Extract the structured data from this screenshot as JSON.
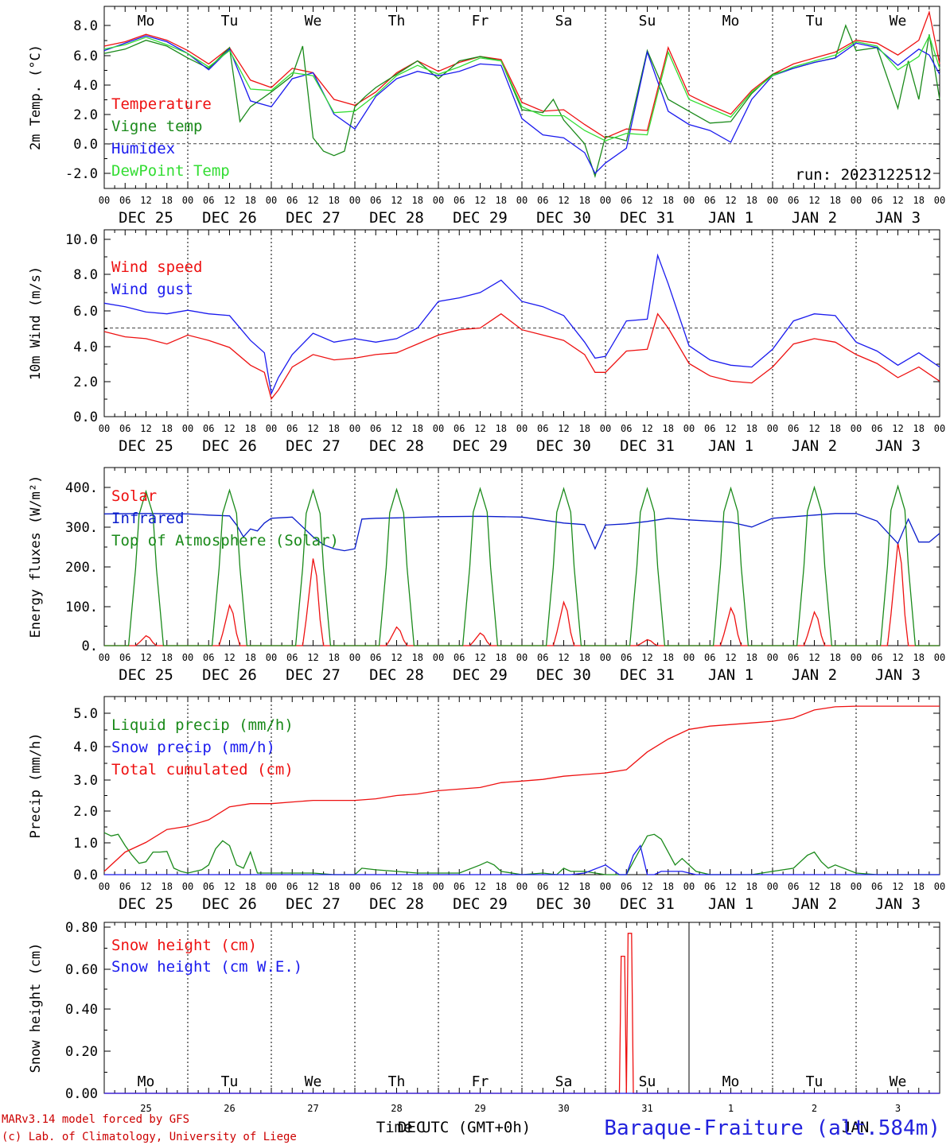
{
  "colors": {
    "red": "#ee1111",
    "green": "#1a8a1a",
    "blue": "#1a1aee",
    "light_green": "#33dd33",
    "dark_blue": "#0a1ccc",
    "dark_red": "#cc0000"
  },
  "day_names": [
    "Mo",
    "Tu",
    "We",
    "Th",
    "Fr",
    "Sa",
    "Su",
    "Mo",
    "Tu",
    "We"
  ],
  "weekend_indices": [
    5,
    6
  ],
  "date_labels": [
    "DEC 25",
    "DEC 26",
    "DEC 27",
    "DEC 28",
    "DEC 29",
    "DEC 30",
    "DEC 31",
    "JAN  1",
    "JAN  2",
    "JAN  3"
  ],
  "hour_labels": [
    "00",
    "06",
    "12",
    "18"
  ],
  "final_hour_label": "00",
  "day_numbers": [
    "25",
    "26",
    "27",
    "28",
    "29",
    "30",
    "31",
    "1",
    "2",
    "3"
  ],
  "footer": {
    "credit_line1": "MARv3.14 model forced by GFS",
    "credit_line2": "(c) Lab. of Climatology, University of Liege",
    "xlabel": "Time UTC (GMT+0h)",
    "month_overlay": "DEC",
    "month_overlay_2": "JAN",
    "station": "Baraque-Fraiture (alt.584m)"
  },
  "chart_data": [
    {
      "type": "line",
      "ylabel": "2m Temp. (°C)",
      "yticks": [
        "8.0",
        "6.0",
        "4.0",
        "2.0",
        "0.0",
        "-2.0"
      ],
      "ylim": [
        -2.8,
        9.2
      ],
      "annotation": "run: 2023122512",
      "series": [
        {
          "name": "Temperature",
          "color": "red",
          "x": [
            0,
            6,
            12,
            18,
            24,
            30,
            36,
            42,
            48,
            54,
            60,
            66,
            72,
            78,
            84,
            90,
            96,
            102,
            108,
            114,
            120,
            126,
            132,
            138,
            144,
            150,
            156,
            162,
            168,
            174,
            180,
            186,
            192,
            198,
            204,
            210,
            216,
            222,
            228,
            234,
            237,
            240
          ],
          "values": [
            6.6,
            6.9,
            7.4,
            7.0,
            6.3,
            5.4,
            6.5,
            4.3,
            3.8,
            5.1,
            4.8,
            3.0,
            2.6,
            3.5,
            4.8,
            5.6,
            4.9,
            5.5,
            5.9,
            5.7,
            2.8,
            2.2,
            2.3,
            1.3,
            0.4,
            1.0,
            0.9,
            6.5,
            3.3,
            2.6,
            2.0,
            3.6,
            4.7,
            5.4,
            5.8,
            6.2,
            7.0,
            6.8,
            6.0,
            7.0,
            8.9,
            5.4
          ]
        },
        {
          "name": "Vigne temp",
          "color": "green",
          "x": [
            0,
            6,
            12,
            18,
            24,
            30,
            36,
            39,
            42,
            48,
            54,
            57,
            60,
            63,
            66,
            69,
            72,
            75,
            78,
            84,
            90,
            96,
            102,
            108,
            114,
            120,
            126,
            129,
            132,
            138,
            141,
            144,
            147,
            150,
            156,
            162,
            168,
            174,
            180,
            186,
            192,
            198,
            204,
            210,
            213,
            216,
            222,
            228,
            231,
            234,
            237,
            240
          ],
          "values": [
            6.1,
            6.4,
            7.0,
            6.6,
            5.8,
            5.1,
            6.5,
            1.5,
            2.5,
            3.5,
            4.6,
            6.6,
            0.4,
            -0.5,
            -0.8,
            -0.5,
            2.5,
            3.2,
            3.8,
            4.7,
            5.6,
            4.4,
            5.6,
            5.9,
            5.6,
            2.3,
            2.1,
            3.0,
            1.6,
            0.0,
            -2.2,
            0.5,
            0.4,
            0.2,
            6.3,
            3.0,
            2.2,
            1.4,
            1.5,
            3.4,
            4.7,
            5.1,
            5.5,
            5.8,
            8.0,
            6.3,
            6.5,
            2.4,
            5.6,
            3.0,
            7.4,
            3.0
          ]
        },
        {
          "name": "Humidex",
          "color": "blue",
          "x": [
            0,
            6,
            12,
            18,
            24,
            30,
            36,
            42,
            48,
            54,
            60,
            66,
            72,
            78,
            84,
            90,
            96,
            102,
            108,
            114,
            120,
            126,
            132,
            138,
            141,
            144,
            150,
            156,
            162,
            168,
            174,
            180,
            186,
            192,
            198,
            204,
            210,
            216,
            222,
            228,
            234,
            237,
            240
          ],
          "values": [
            6.3,
            6.8,
            7.3,
            6.9,
            6.1,
            5.0,
            6.4,
            2.9,
            2.5,
            4.4,
            4.8,
            2.0,
            1.0,
            3.2,
            4.4,
            4.9,
            4.6,
            4.9,
            5.4,
            5.3,
            1.7,
            0.6,
            0.4,
            -0.6,
            -2.0,
            -1.3,
            -0.3,
            6.2,
            2.2,
            1.3,
            0.9,
            0.1,
            3.0,
            4.6,
            5.1,
            5.5,
            5.8,
            6.8,
            6.5,
            5.3,
            6.4,
            6.0,
            4.7
          ]
        },
        {
          "name": "DewPoint Temp",
          "color": "light_green",
          "x": [
            0,
            6,
            12,
            18,
            24,
            30,
            36,
            42,
            48,
            54,
            60,
            66,
            72,
            78,
            84,
            90,
            96,
            102,
            108,
            114,
            120,
            126,
            132,
            138,
            144,
            150,
            156,
            162,
            168,
            174,
            180,
            186,
            192,
            198,
            204,
            210,
            216,
            222,
            228,
            234,
            237,
            240
          ],
          "values": [
            6.4,
            6.7,
            7.2,
            6.7,
            6.1,
            5.2,
            6.3,
            3.7,
            3.6,
            4.8,
            4.6,
            2.1,
            2.2,
            3.3,
            4.6,
            5.3,
            4.7,
            5.2,
            5.8,
            5.6,
            2.5,
            1.9,
            1.9,
            0.9,
            0.2,
            0.7,
            0.6,
            6.2,
            3.0,
            2.4,
            1.8,
            3.5,
            4.6,
            5.2,
            5.6,
            6.0,
            6.9,
            6.6,
            5.0,
            5.9,
            7.3,
            5.1
          ]
        }
      ],
      "hlines": [
        0.0
      ]
    },
    {
      "type": "line",
      "ylabel": "10m Wind (m/s)",
      "yticks": [
        "10.0",
        "8.0",
        "6.0",
        "4.0",
        "2.0",
        "0.0"
      ],
      "ylim": [
        0,
        10
      ],
      "series": [
        {
          "name": "Wind speed",
          "color": "red",
          "x": [
            0,
            6,
            12,
            18,
            24,
            30,
            36,
            42,
            46,
            48,
            50,
            54,
            60,
            66,
            72,
            78,
            84,
            90,
            96,
            102,
            108,
            114,
            120,
            126,
            132,
            138,
            141,
            144,
            150,
            156,
            159,
            162,
            168,
            174,
            180,
            186,
            192,
            198,
            204,
            210,
            216,
            222,
            228,
            234,
            240
          ],
          "values": [
            4.8,
            4.5,
            4.4,
            4.1,
            4.6,
            4.3,
            3.9,
            2.9,
            2.5,
            1.0,
            1.5,
            2.8,
            3.5,
            3.2,
            3.3,
            3.5,
            3.6,
            4.1,
            4.6,
            4.9,
            5.0,
            5.8,
            4.9,
            4.6,
            4.3,
            3.5,
            2.5,
            2.5,
            3.7,
            3.8,
            5.8,
            5.0,
            3.0,
            2.3,
            2.0,
            1.9,
            2.8,
            4.1,
            4.4,
            4.2,
            3.5,
            3.0,
            2.2,
            2.8,
            2.0
          ]
        },
        {
          "name": "Wind gust",
          "color": "blue",
          "x": [
            0,
            6,
            12,
            18,
            24,
            30,
            36,
            42,
            46,
            48,
            50,
            54,
            60,
            66,
            72,
            78,
            84,
            90,
            96,
            102,
            108,
            114,
            120,
            126,
            132,
            138,
            141,
            144,
            150,
            156,
            159,
            162,
            168,
            174,
            180,
            186,
            192,
            198,
            204,
            210,
            216,
            222,
            228,
            234,
            240
          ],
          "values": [
            6.4,
            6.2,
            5.9,
            5.8,
            6.0,
            5.8,
            5.7,
            4.3,
            3.6,
            1.3,
            2.2,
            3.5,
            4.7,
            4.2,
            4.4,
            4.2,
            4.4,
            5.0,
            6.5,
            6.7,
            7.0,
            7.7,
            6.5,
            6.2,
            5.7,
            4.2,
            3.3,
            3.4,
            5.4,
            5.5,
            9.1,
            7.5,
            4.0,
            3.2,
            2.9,
            2.8,
            3.8,
            5.4,
            5.8,
            5.7,
            4.2,
            3.7,
            2.9,
            3.6,
            2.8
          ]
        }
      ],
      "hlines": [
        5.0
      ]
    },
    {
      "type": "line",
      "ylabel": "Energy fluxes (W/m²)",
      "yticks": [
        "400.",
        "300.",
        "200.",
        "100.",
        "0."
      ],
      "ylim": [
        0,
        440
      ],
      "series": [
        {
          "name": "Solar",
          "color": "red",
          "peaks": [
            25,
            102,
            220,
            47,
            32,
            110,
            15,
            95,
            85,
            260
          ]
        },
        {
          "name": "Infrared",
          "color": "dark_blue",
          "x": [
            0,
            12,
            24,
            30,
            36,
            38,
            40,
            42,
            44,
            46,
            48,
            54,
            60,
            63,
            66,
            69,
            72,
            74,
            78,
            84,
            96,
            108,
            120,
            132,
            138,
            141,
            144,
            150,
            156,
            162,
            168,
            174,
            180,
            186,
            192,
            204,
            210,
            216,
            222,
            228,
            231,
            234,
            237,
            240
          ],
          "values": [
            333,
            334,
            333,
            330,
            328,
            305,
            275,
            295,
            290,
            310,
            322,
            325,
            275,
            255,
            245,
            240,
            245,
            320,
            322,
            323,
            326,
            327,
            325,
            310,
            306,
            245,
            305,
            308,
            314,
            322,
            318,
            315,
            312,
            300,
            322,
            330,
            334,
            334,
            315,
            258,
            320,
            262,
            262,
            284
          ]
        },
        {
          "name": "Top of Atmosphere (Solar)",
          "color": "green",
          "peaks": [
            390,
            393,
            393,
            395,
            397,
            397,
            397,
            398,
            400,
            403
          ]
        }
      ]
    },
    {
      "type": "line",
      "ylabel": "Precip (mm/h)",
      "yticks": [
        "5.0",
        "4.0",
        "3.0",
        "2.0",
        "1.0",
        "0.0"
      ],
      "ylim": [
        0,
        5.5
      ],
      "series": [
        {
          "name": "Liquid precip (mm/h)",
          "color": "green",
          "x": [
            0,
            2,
            4,
            6,
            8,
            10,
            12,
            14,
            16,
            18,
            20,
            22,
            24,
            28,
            30,
            32,
            34,
            36,
            38,
            40,
            42,
            44,
            48,
            54,
            60,
            66,
            72,
            74,
            78,
            84,
            90,
            96,
            102,
            108,
            110,
            112,
            114,
            120,
            126,
            130,
            132,
            134,
            138,
            144,
            150,
            152,
            154,
            156,
            158,
            160,
            162,
            164,
            166,
            168,
            170,
            174,
            180,
            186,
            192,
            198,
            200,
            202,
            204,
            206,
            208,
            210,
            216,
            222,
            228,
            234,
            240
          ],
          "values": [
            1.3,
            1.2,
            1.25,
            0.9,
            0.6,
            0.35,
            0.4,
            0.7,
            0.7,
            0.72,
            0.2,
            0.1,
            0.05,
            0.15,
            0.3,
            0.8,
            1.05,
            0.9,
            0.3,
            0.2,
            0.7,
            0.05,
            0.05,
            0.05,
            0.05,
            0.0,
            0.0,
            0.2,
            0.15,
            0.1,
            0.05,
            0.05,
            0.05,
            0.3,
            0.4,
            0.3,
            0.1,
            0.0,
            0.05,
            0.0,
            0.2,
            0.1,
            0.1,
            0.0,
            0.0,
            0.4,
            0.8,
            1.2,
            1.25,
            1.1,
            0.7,
            0.3,
            0.5,
            0.3,
            0.1,
            0.0,
            0.0,
            0.0,
            0.1,
            0.2,
            0.4,
            0.6,
            0.7,
            0.4,
            0.2,
            0.3,
            0.05,
            0.0,
            0.0,
            0.0,
            0.0
          ]
        },
        {
          "name": "Snow precip (mm/h)",
          "color": "blue",
          "x": [
            0,
            132,
            134,
            138,
            144,
            148,
            150,
            152,
            154,
            156,
            158,
            160,
            166,
            170,
            174,
            180,
            240
          ],
          "values": [
            0,
            0,
            0.0,
            0.05,
            0.3,
            0.0,
            0.0,
            0.6,
            0.9,
            0.0,
            0.0,
            0.1,
            0.1,
            0.0,
            0.0,
            0.0,
            0.0
          ]
        },
        {
          "name": "Total cumulated (cm)",
          "color": "red",
          "x": [
            0,
            6,
            12,
            18,
            24,
            30,
            36,
            42,
            48,
            54,
            60,
            66,
            72,
            78,
            84,
            90,
            96,
            102,
            108,
            114,
            120,
            126,
            132,
            138,
            144,
            150,
            156,
            162,
            168,
            174,
            180,
            186,
            192,
            198,
            204,
            210,
            216,
            222,
            228,
            234,
            240
          ],
          "values": [
            0.1,
            0.7,
            1.0,
            1.4,
            1.5,
            1.7,
            2.1,
            2.2,
            2.2,
            2.25,
            2.3,
            2.3,
            2.3,
            2.35,
            2.45,
            2.5,
            2.6,
            2.65,
            2.7,
            2.85,
            2.9,
            2.95,
            3.05,
            3.1,
            3.15,
            3.25,
            3.8,
            4.2,
            4.5,
            4.6,
            4.65,
            4.7,
            4.75,
            4.85,
            5.1,
            5.2,
            5.22,
            5.22,
            5.22,
            5.22,
            5.22
          ]
        }
      ]
    },
    {
      "type": "line",
      "ylabel": "Snow height (cm)",
      "yticks": [
        "0.80",
        "0.60",
        "0.40",
        "0.20",
        "0.00"
      ],
      "ylim": [
        0,
        0.82
      ],
      "series": [
        {
          "name": "Snow height (cm)",
          "color": "red",
          "x": [
            0,
            148,
            148.5,
            149.5,
            150,
            150.5,
            151.5,
            152,
            240
          ],
          "values": [
            0,
            0,
            0.66,
            0.66,
            0,
            0.77,
            0.77,
            0,
            0
          ]
        },
        {
          "name": "Snow height (cm W.E.)",
          "color": "blue",
          "x": [
            0,
            240
          ],
          "values": [
            0,
            0
          ]
        }
      ]
    }
  ]
}
